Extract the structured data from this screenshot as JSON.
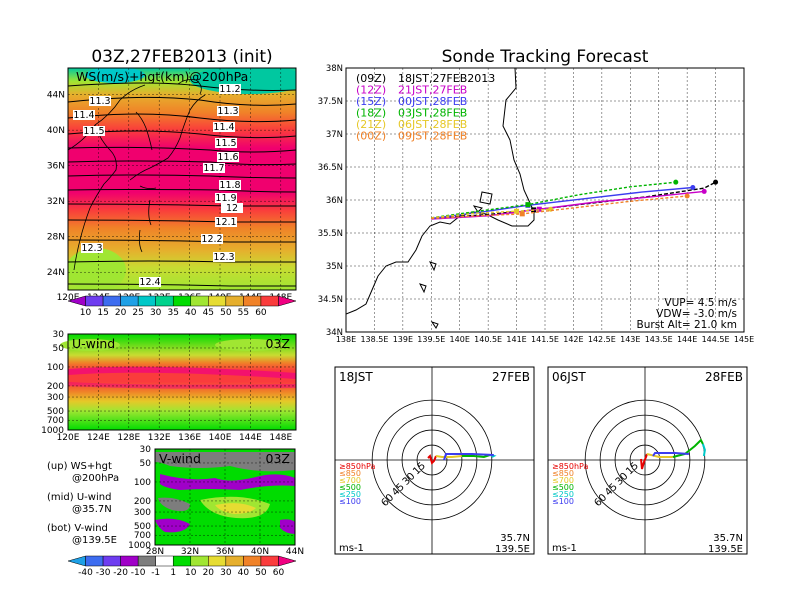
{
  "header": {
    "left_title": "03Z,27FEB2013 (init)",
    "right_title": "Sonde Tracking Forecast"
  },
  "map_panel": {
    "field_label": "WS(m/s)+hgt(km)@200hPa",
    "lat_ticks": [
      "44N",
      "40N",
      "36N",
      "32N",
      "28N",
      "24N"
    ],
    "lon_ticks": [
      "120E",
      "124E",
      "128E",
      "132E",
      "136E",
      "140E",
      "144E",
      "148E"
    ],
    "contour_labels": [
      "11.2",
      "11.3",
      "11.3",
      "11.4",
      "11.4",
      "11.5",
      "11.5",
      "11.6",
      "11.7",
      "11.8",
      "11.9",
      "12",
      "12.1",
      "12.2",
      "12.3",
      "12.3",
      "12.4"
    ]
  },
  "speed_colorbar": {
    "values": [
      "10",
      "15",
      "20",
      "25",
      "30",
      "35",
      "40",
      "45",
      "50",
      "55",
      "60"
    ],
    "colors": [
      "#a000c8",
      "#6e3cf0",
      "#3c6cf0",
      "#1ea0e6",
      "#00c8c8",
      "#00d28c",
      "#00dc00",
      "#a0e632",
      "#e6dc32",
      "#e6af2d",
      "#f08228",
      "#fa3c3c",
      "#f00082"
    ]
  },
  "uwind_panel": {
    "label": "U-wind",
    "time": "03Z",
    "p_ticks": [
      "30",
      "50",
      "100",
      "200",
      "300",
      "500",
      "700",
      "1000"
    ],
    "lon_ticks": [
      "120E",
      "124E",
      "128E",
      "132E",
      "136E",
      "140E",
      "144E",
      "148E"
    ]
  },
  "vwind_panel": {
    "label": "V-wind",
    "time": "03Z",
    "p_ticks": [
      "30",
      "50",
      "100",
      "200",
      "300",
      "500",
      "700",
      "1000"
    ],
    "lat_ticks": [
      "28N",
      "32N",
      "36N",
      "40N",
      "44N"
    ]
  },
  "legend_notes": [
    {
      "line1": "(up) WS+hgt",
      "line2": "@200hPa"
    },
    {
      "line1": "(mid) U-wind",
      "line2": "@35.7N"
    },
    {
      "line1": "(bot) V-wind",
      "line2": "@139.5E"
    }
  ],
  "wind_colorbar": {
    "values": [
      "-40",
      "-30",
      "-20",
      "-10",
      "-1",
      "1",
      "10",
      "20",
      "30",
      "40",
      "50",
      "60"
    ],
    "colors": [
      "#1ea0e6",
      "#3c6cf0",
      "#6e3cf0",
      "#a000c8",
      "#7d7d7d",
      "#ffffff",
      "#00dc00",
      "#a0e632",
      "#e6dc32",
      "#e6af2d",
      "#f08228",
      "#fa3c3c",
      "#f00082"
    ]
  },
  "tracking": {
    "lat_ticks": [
      "38N",
      "37.5N",
      "37N",
      "36.5N",
      "36N",
      "35.5N",
      "35N",
      "34.5N",
      "34N"
    ],
    "lon_ticks": [
      "138E",
      "138.5E",
      "139E",
      "139.5E",
      "140E",
      "140.5E",
      "141E",
      "141.5E",
      "142E",
      "142.5E",
      "143E",
      "143.5E",
      "144E",
      "144.5E",
      "145E"
    ],
    "launches": [
      {
        "utc": "(09Z)",
        "jst": "18JST,27FEB2013",
        "color": "#000000"
      },
      {
        "utc": "(12Z)",
        "jst": "21JST,27FEB",
        "color": "#c800c8"
      },
      {
        "utc": "(15Z)",
        "jst": "00JST,28FEB",
        "color": "#3c3cf0"
      },
      {
        "utc": "(18Z)",
        "jst": "03JST,28FEB",
        "color": "#00b400"
      },
      {
        "utc": "(21Z)",
        "jst": "06JST,28FEB",
        "color": "#e6c828"
      },
      {
        "utc": "(00Z)",
        "jst": "09JST,28FEB",
        "color": "#f08228"
      }
    ],
    "params": [
      "VUP= 4.5 m/s",
      "VDW= -3.0 m/s",
      "Burst Alt= 21.0 km"
    ]
  },
  "hodographs": [
    {
      "time": "18JST",
      "date": "27FEB",
      "ring_labels": [
        "15",
        "30",
        "45",
        "60"
      ],
      "units": "ms-1",
      "lat": "35.7N",
      "lon": "139.5E"
    },
    {
      "time": "06JST",
      "date": "28FEB",
      "ring_labels": [
        "15",
        "30",
        "45",
        "60"
      ],
      "units": "ms-1",
      "lat": "35.7N",
      "lon": "139.5E"
    }
  ],
  "hodo_legend": [
    {
      "text": "≥850hPa",
      "color": "#e60000"
    },
    {
      "text": "≤850",
      "color": "#f08228"
    },
    {
      "text": "≤700",
      "color": "#e6c828"
    },
    {
      "text": "≤500",
      "color": "#00b400"
    },
    {
      "text": "≤250",
      "color": "#00c8c8"
    },
    {
      "text": "≤100",
      "color": "#3c3cf0"
    }
  ],
  "chart_data": [
    {
      "type": "heatmap",
      "title": "03Z,27FEB2013 (init)",
      "field": "WS(m/s)+hgt(km)@200hPa",
      "x_range": [
        120,
        150
      ],
      "y_range": [
        22,
        47
      ],
      "jet_core_lat": 32,
      "contour_values_km": [
        11.2,
        11.3,
        11.4,
        11.5,
        11.6,
        11.7,
        11.8,
        11.9,
        12,
        12.1,
        12.2,
        12.3,
        12.4
      ]
    },
    {
      "type": "heatmap",
      "field": "U-wind",
      "x_range": [
        120,
        150
      ],
      "y_range_hPa": [
        1000,
        30
      ],
      "max_layer_hPa": [
        150,
        300
      ]
    },
    {
      "type": "heatmap",
      "field": "V-wind",
      "x_range": [
        28,
        44
      ],
      "y_range_hPa": [
        1000,
        30
      ]
    },
    {
      "type": "line",
      "title": "Sonde Tracking Forecast",
      "x_range": [
        138,
        145
      ],
      "y_range": [
        34,
        38
      ],
      "series": [
        {
          "name": "(09Z) 18JST,27FEB2013",
          "color": "#000000",
          "x": [
            139.5,
            140.5,
            141.3,
            142.3,
            143.3,
            144.3,
            144.5
          ],
          "y": [
            35.72,
            35.78,
            35.85,
            35.95,
            36.05,
            36.18,
            36.27
          ]
        },
        {
          "name": "(12Z) 21JST,27FEB",
          "color": "#c800c8",
          "x": [
            139.5,
            140.5,
            141.4,
            142.4,
            143.4,
            144.3
          ],
          "y": [
            35.71,
            35.76,
            35.86,
            35.97,
            36.05,
            36.13
          ]
        },
        {
          "name": "(15Z) 00JST,28FEB",
          "color": "#3c3cf0",
          "x": [
            139.5,
            140.4,
            141.2,
            142.2,
            143.2,
            144.1
          ],
          "y": [
            35.72,
            35.82,
            35.92,
            36.02,
            36.12,
            36.19
          ]
        },
        {
          "name": "(18Z) 03JST,28FEB",
          "color": "#00b400",
          "x": [
            139.5,
            140.4,
            141.2,
            142.1,
            143.0,
            143.8
          ],
          "y": [
            35.73,
            35.84,
            35.93,
            36.08,
            36.2,
            36.27
          ]
        },
        {
          "name": "(21Z) 06JST,28FEB",
          "color": "#e6c828",
          "x": [
            139.5,
            140.3,
            141.0,
            141.6
          ],
          "y": [
            35.73,
            35.8,
            35.83,
            35.86
          ]
        },
        {
          "name": "(00Z) 09JST,28FEB",
          "color": "#f08228",
          "x": [
            139.5,
            140.3,
            141.1,
            142.0,
            143.0,
            144.0
          ],
          "y": [
            35.72,
            35.76,
            35.79,
            35.88,
            35.98,
            36.06
          ]
        }
      ],
      "params": {
        "VUP_m_s": 4.5,
        "VDW_m_s": -3.0,
        "burst_alt_km": 21.0
      }
    },
    {
      "type": "line",
      "title": "18JST 27FEB",
      "units": "ms-1",
      "ring_speeds": [
        15,
        30,
        45,
        60
      ],
      "series": [
        {
          "name": "≥850hPa",
          "color": "#e60000",
          "u": [
            -4,
            -2,
            0,
            2,
            4
          ],
          "v": [
            2,
            4,
            -3,
            -1,
            4
          ]
        },
        {
          "name": "≤700",
          "color": "#e6c828",
          "u": [
            4,
            10,
            20,
            30
          ],
          "v": [
            4,
            3,
            3,
            4
          ]
        },
        {
          "name": "≤500",
          "color": "#00b400",
          "u": [
            30,
            42,
            52,
            58
          ],
          "v": [
            4,
            4,
            3,
            5
          ]
        },
        {
          "name": "≤250",
          "color": "#00c8c8",
          "u": [
            58,
            62,
            60
          ],
          "v": [
            5,
            4,
            3
          ]
        },
        {
          "name": "≤100",
          "color": "#3c3cf0",
          "u": [
            12,
            14,
            40,
            62
          ],
          "v": [
            0,
            6,
            6,
            5
          ]
        }
      ]
    },
    {
      "type": "line",
      "title": "06JST 28FEB",
      "units": "ms-1",
      "ring_speeds": [
        15,
        30,
        45,
        60
      ],
      "series": [
        {
          "name": "≥850hPa",
          "color": "#e60000",
          "u": [
            -4,
            -3,
            -1,
            1,
            2
          ],
          "v": [
            1,
            -9,
            -2,
            3,
            6
          ]
        },
        {
          "name": "≤700",
          "color": "#e6c828",
          "u": [
            2,
            14,
            28
          ],
          "v": [
            6,
            3,
            3
          ]
        },
        {
          "name": "≤500",
          "color": "#00b400",
          "u": [
            28,
            40,
            50,
            56,
            58
          ],
          "v": [
            3,
            6,
            14,
            20,
            16
          ]
        },
        {
          "name": "≤250",
          "color": "#00c8c8",
          "u": [
            58,
            60,
            59
          ],
          "v": [
            16,
            10,
            4
          ]
        },
        {
          "name": "≤100",
          "color": "#3c3cf0",
          "u": [
            8,
            10,
            30,
            44
          ],
          "v": [
            4,
            7,
            7,
            6
          ]
        }
      ]
    }
  ]
}
